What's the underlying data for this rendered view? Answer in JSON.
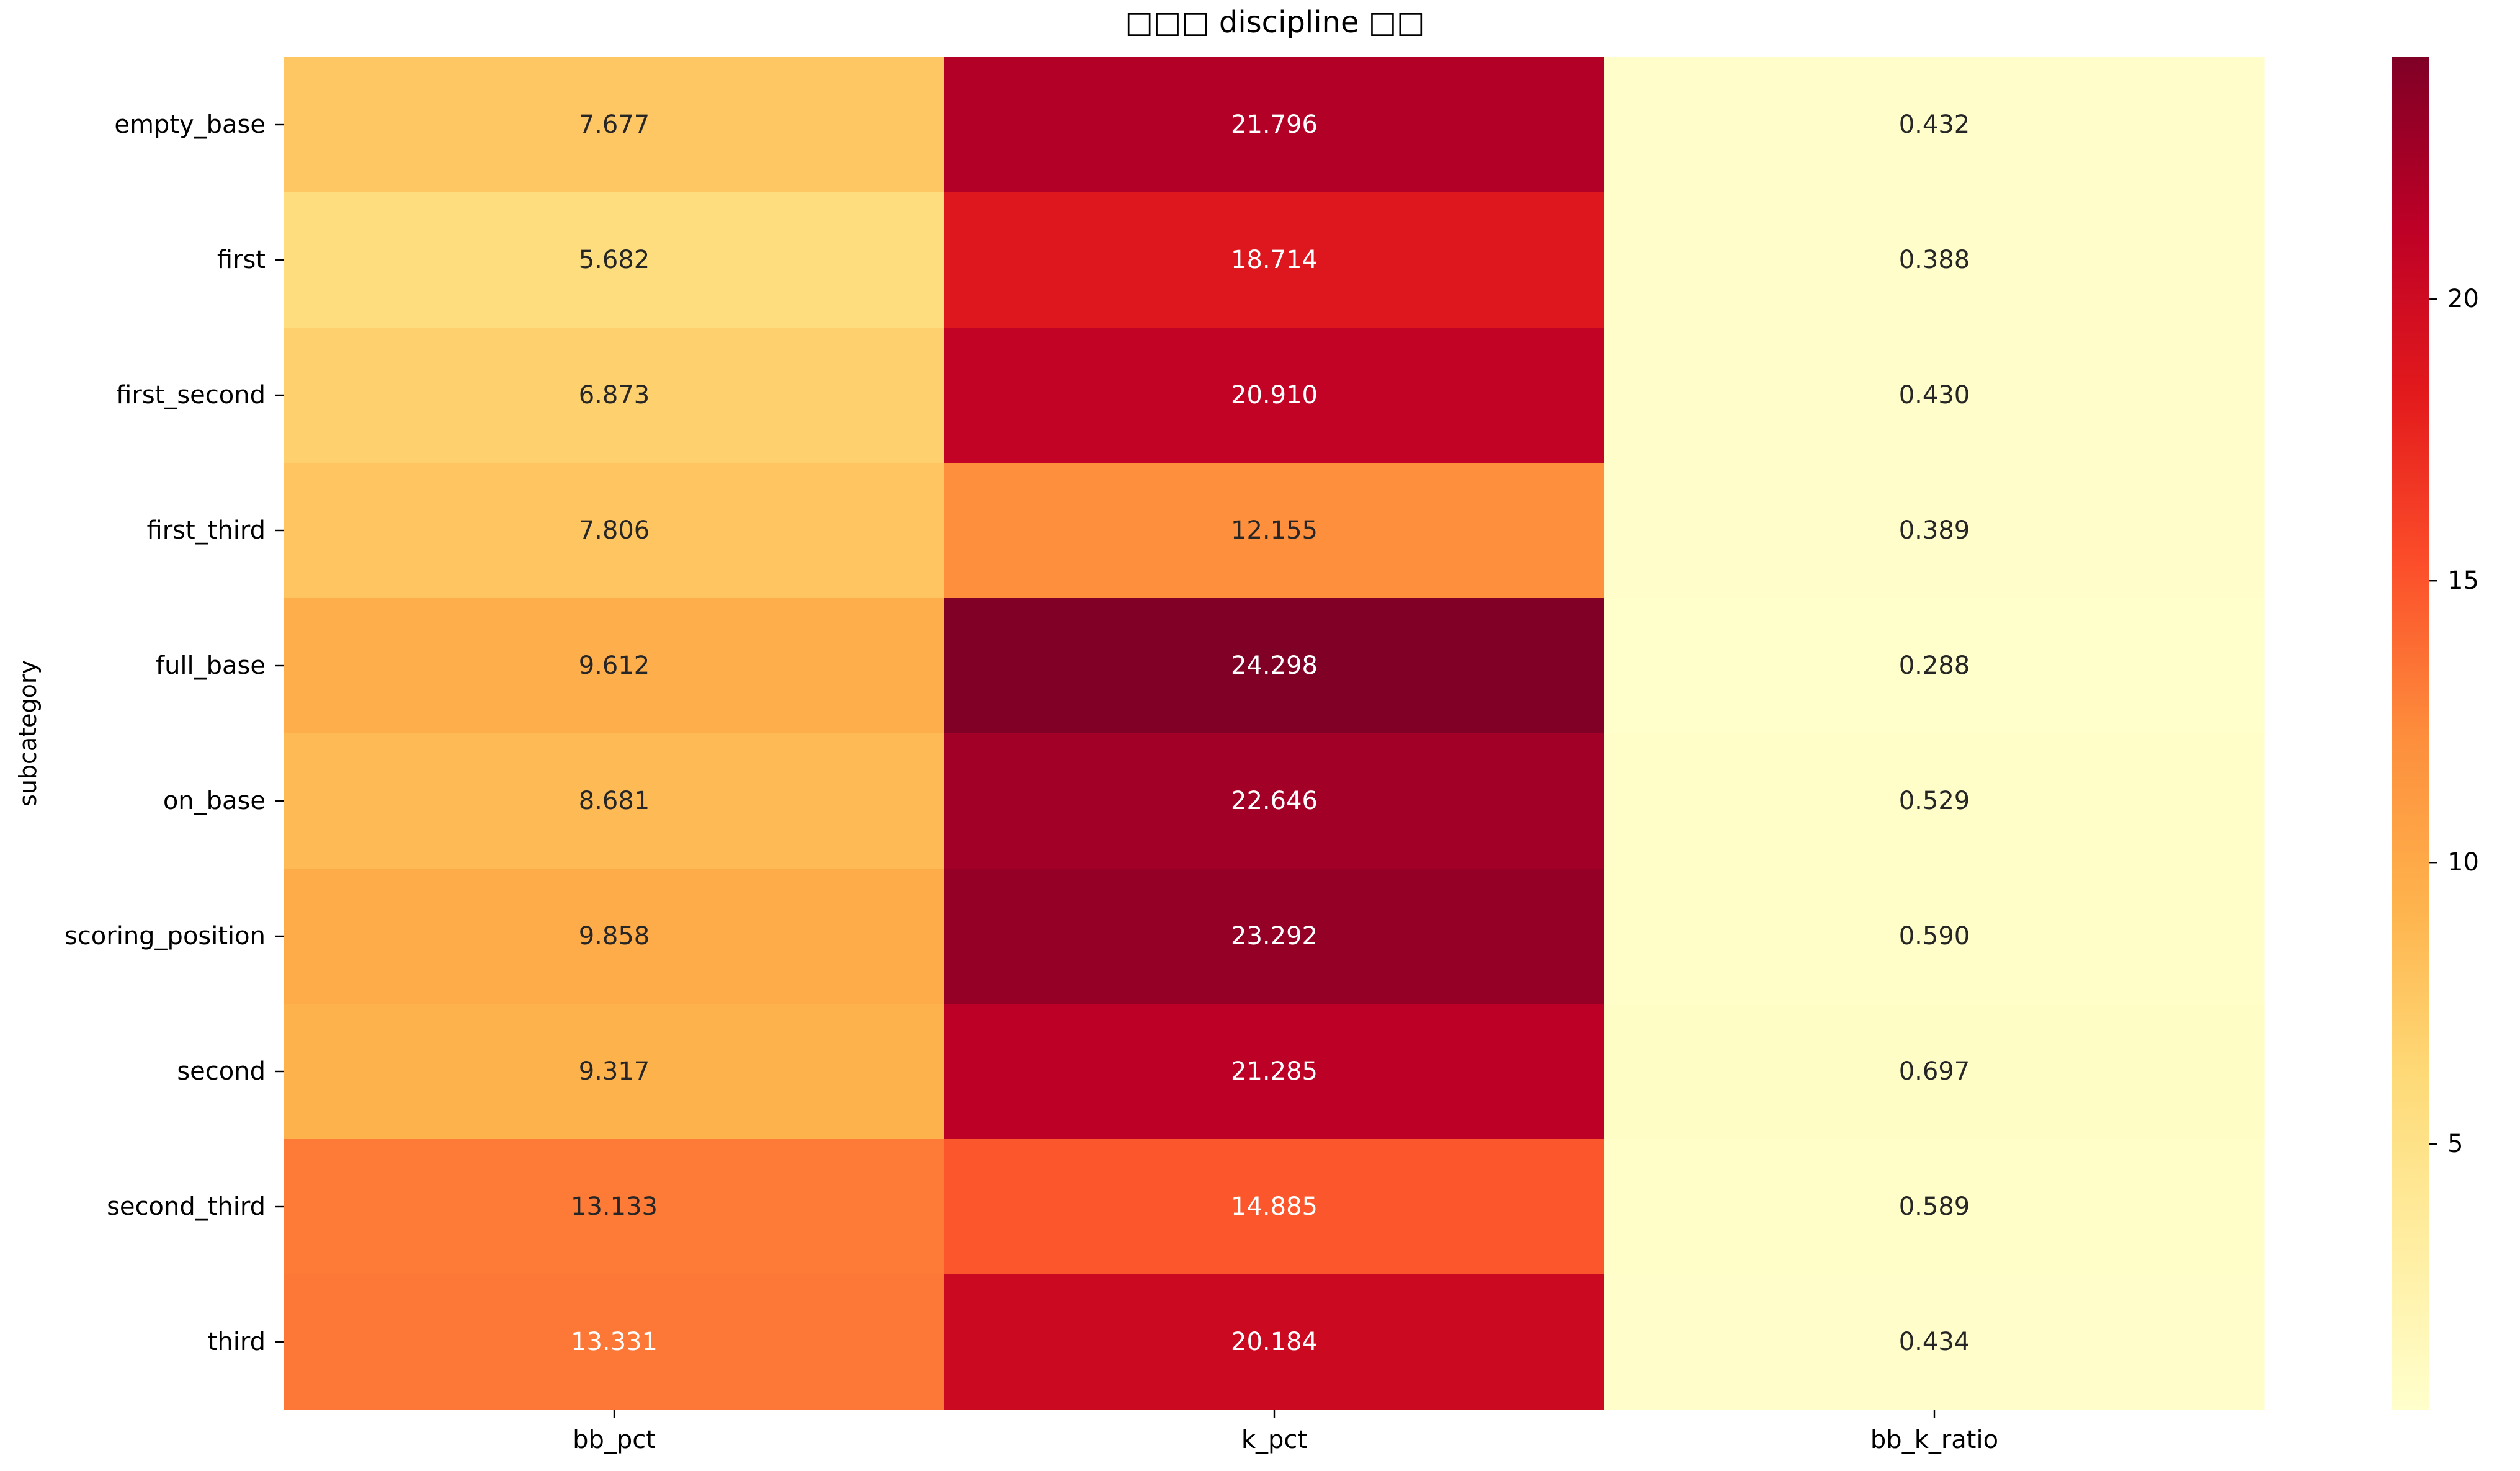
{
  "chart_data": {
    "type": "heatmap",
    "title": "□□□ discipline □□",
    "xlabel": "",
    "ylabel": "subcategory",
    "columns": [
      "bb_pct",
      "k_pct",
      "bb_k_ratio"
    ],
    "rows": [
      "empty_base",
      "first",
      "first_second",
      "first_third",
      "full_base",
      "on_base",
      "scoring_position",
      "second",
      "second_third",
      "third"
    ],
    "values": [
      [
        7.677,
        21.796,
        0.432
      ],
      [
        5.682,
        18.714,
        0.388
      ],
      [
        6.873,
        20.91,
        0.43
      ],
      [
        7.806,
        12.155,
        0.389
      ],
      [
        9.612,
        24.298,
        0.288
      ],
      [
        8.681,
        22.646,
        0.529
      ],
      [
        9.858,
        23.292,
        0.59
      ],
      [
        9.317,
        21.285,
        0.697
      ],
      [
        13.133,
        14.885,
        0.589
      ],
      [
        13.331,
        20.184,
        0.434
      ]
    ],
    "cell_labels": [
      [
        "7.677",
        "21.796",
        "0.432"
      ],
      [
        "5.682",
        "18.714",
        "0.388"
      ],
      [
        "6.873",
        "20.910",
        "0.430"
      ],
      [
        "7.806",
        "12.155",
        "0.389"
      ],
      [
        "9.612",
        "24.298",
        "0.288"
      ],
      [
        "8.681",
        "22.646",
        "0.529"
      ],
      [
        "9.858",
        "23.292",
        "0.590"
      ],
      [
        "9.317",
        "21.285",
        "0.697"
      ],
      [
        "13.133",
        "14.885",
        "0.589"
      ],
      [
        "13.331",
        "20.184",
        "0.434"
      ]
    ],
    "colormap": "YlOrRd",
    "colormap_stops": [
      "#ffffcc",
      "#ffeda0",
      "#fed976",
      "#feb24c",
      "#fd8d3c",
      "#fc4e2a",
      "#e31a1c",
      "#bd0026",
      "#800026"
    ],
    "colorbar": {
      "vmin": 0.288,
      "vmax": 24.298,
      "ticks": [
        5,
        10,
        15,
        20
      ],
      "tick_labels": [
        "5",
        "10",
        "15",
        "20"
      ]
    },
    "grid": false,
    "legend": "colorbar-right"
  }
}
